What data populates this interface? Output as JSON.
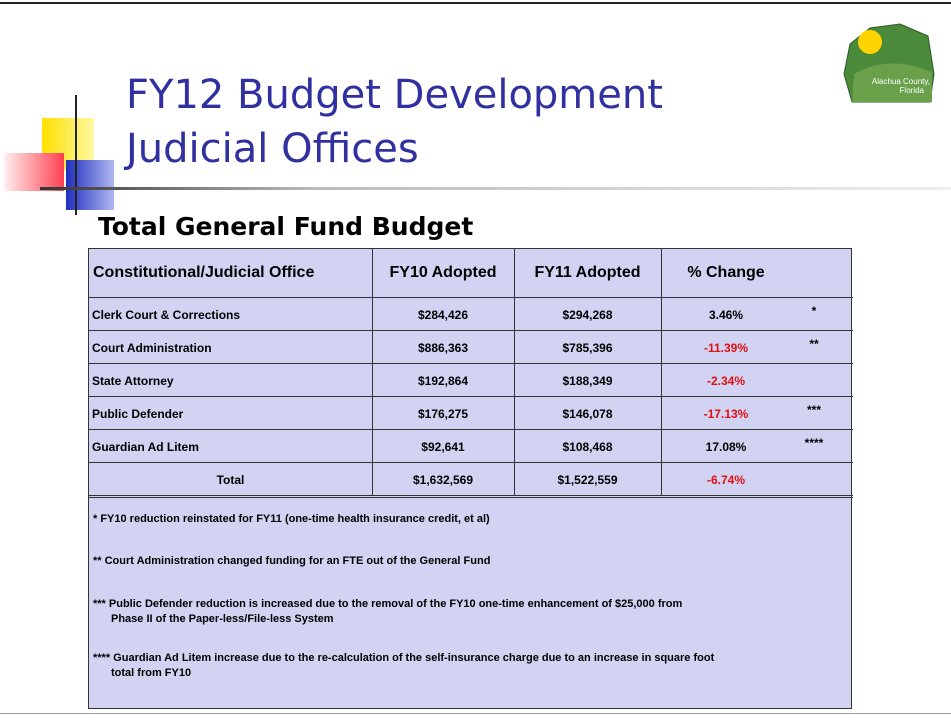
{
  "header": {
    "title_lines": [
      "FY12 Budget Development",
      "Judicial Offices"
    ],
    "logo_lines": [
      "Alachua County,",
      "Florida"
    ]
  },
  "subtitle": "Total General Fund Budget",
  "table": {
    "columns": [
      "Constitutional/Judicial Office",
      "FY10 Adopted",
      "FY11 Adopted",
      "% Change"
    ],
    "rows": [
      [
        "Clerk Court & Corrections",
        "$284,426",
        "$294,268",
        "3.46%",
        "*"
      ],
      [
        "Court Administration",
        "$886,363",
        "$785,396",
        "-11.39%",
        "**"
      ],
      [
        "State Attorney",
        "$192,864",
        "$188,349",
        "-2.34%"
      ],
      [
        "Public Defender",
        "$176,275",
        "$146,078",
        "-17.13%",
        "***"
      ],
      [
        "Guardian Ad Litem",
        "$92,641",
        "$108,468",
        "17.08%",
        "****"
      ]
    ],
    "total": [
      "Total",
      "$1,632,569",
      "$1,522,559",
      "-6.74%"
    ]
  },
  "notes": [
    [
      "* FY10 reduction reinstated for FY11 (one-time health insurance credit, et al)"
    ],
    [
      "** Court Administration changed funding for an FTE out of the General Fund"
    ],
    [
      "*** Public Defender reduction  is increased due to the removal of the FY10 one-time enhancement of $25,000 from",
      "Phase II of the Paper-less/File-less System"
    ],
    [
      "**** Guardian Ad Litem increase due to the re-calculation of the self-insurance charge due to an increase in square foot",
      "total from FY10"
    ]
  ]
}
